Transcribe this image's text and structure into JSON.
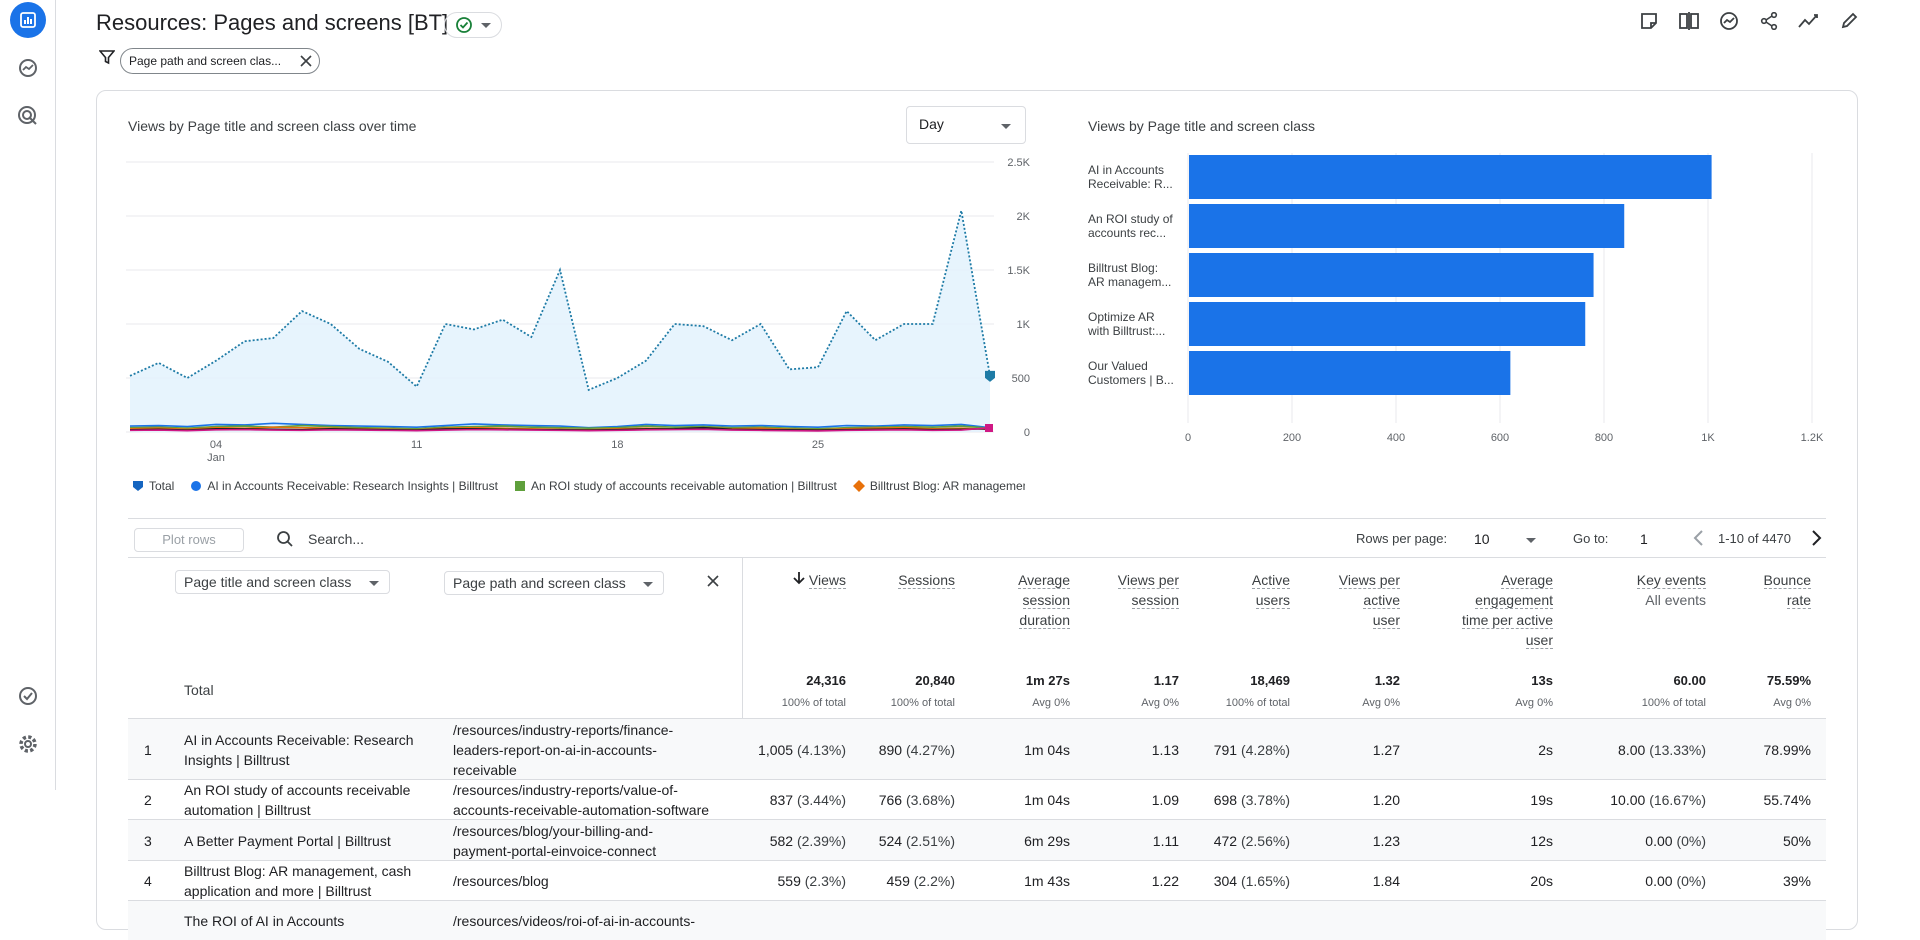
{
  "header": {
    "title": "Resources: Pages and screens [BT]",
    "filter_chip": "Page path and screen clas..."
  },
  "line_chart": {
    "title": "Views by Page title and screen class over time",
    "interval": "Day",
    "legend": [
      {
        "name": "Total",
        "color": "#1565c0"
      },
      {
        "name": "AI in Accounts Receivable: Research Insights | Billtrust",
        "color": "#1a73e8"
      },
      {
        "name": "An ROI study of accounts receivable automation | Billtrust",
        "color": "#5fa03c"
      },
      {
        "name": "Billtrust Blog: AR management, cash application and more | Billtrust",
        "color": "#e8710a"
      }
    ],
    "x_ticks": [
      {
        "day": "04",
        "month": "Jan",
        "day_num": 4
      },
      {
        "day": "11",
        "month": "",
        "day_num": 11
      },
      {
        "day": "18",
        "month": "",
        "day_num": 18
      },
      {
        "day": "25",
        "month": "",
        "day_num": 25
      }
    ],
    "y_ticks": [
      "0",
      "500",
      "1K",
      "1.5K",
      "2K",
      "2.5K"
    ]
  },
  "bar_chart": {
    "title": "Views by Page title and screen class",
    "x_ticks": [
      "0",
      "200",
      "400",
      "600",
      "800",
      "1K",
      "1.2K"
    ]
  },
  "chart_data": [
    {
      "type": "line",
      "title": "Views by Page title and screen class over time",
      "xlabel": "",
      "ylabel": "",
      "ylim": [
        0,
        2500
      ],
      "x": [
        1,
        2,
        3,
        4,
        5,
        6,
        7,
        8,
        9,
        10,
        11,
        12,
        13,
        14,
        15,
        16,
        17,
        18,
        19,
        20,
        21,
        22,
        23,
        24,
        25,
        26,
        27,
        28,
        29,
        30,
        31
      ],
      "series": [
        {
          "name": "Total",
          "values": [
            520,
            640,
            500,
            660,
            840,
            870,
            1120,
            1000,
            770,
            650,
            420,
            1000,
            950,
            1040,
            880,
            1500,
            390,
            500,
            660,
            1000,
            980,
            850,
            1000,
            580,
            600,
            1120,
            850,
            1000,
            1000,
            2050,
            520
          ]
        },
        {
          "name": "AI in Accounts Receivable: Research Insights | Billtrust",
          "values": [
            55,
            60,
            50,
            70,
            65,
            80,
            70,
            60,
            55,
            50,
            45,
            60,
            75,
            65,
            60,
            55,
            40,
            50,
            70,
            60,
            65,
            55,
            60,
            50,
            45,
            60,
            55,
            65,
            60,
            70,
            40
          ]
        },
        {
          "name": "An ROI study of accounts receivable automation | Billtrust",
          "values": [
            40,
            45,
            35,
            50,
            55,
            45,
            60,
            50,
            40,
            35,
            30,
            45,
            50,
            55,
            45,
            40,
            35,
            40,
            55,
            45,
            50,
            40,
            45,
            35,
            30,
            40,
            45,
            50,
            45,
            55,
            35
          ]
        },
        {
          "name": "Billtrust Blog: AR management, cash application and more | Billtrust",
          "values": [
            30,
            35,
            25,
            40,
            35,
            45,
            40,
            35,
            30,
            25,
            20,
            35,
            40,
            35,
            30,
            25,
            20,
            30,
            35,
            30,
            40,
            30,
            35,
            25,
            20,
            30,
            35,
            40,
            30,
            35,
            25
          ]
        }
      ]
    },
    {
      "type": "bar",
      "title": "Views by Page title and screen class",
      "xlim": [
        0,
        1200
      ],
      "categories": [
        [
          "AI in Accounts",
          "Receivable: R..."
        ],
        [
          "An ROI study of",
          "accounts rec..."
        ],
        [
          "Billtrust Blog:",
          "AR managem..."
        ],
        [
          "Optimize AR",
          "with Billtrust:..."
        ],
        [
          "Our Valued",
          "Customers | B..."
        ]
      ],
      "values": [
        1005,
        837,
        778,
        762,
        618
      ]
    }
  ],
  "table": {
    "plot_rows": "Plot rows",
    "search_placeholder": "Search...",
    "rows_per_page_label": "Rows per page:",
    "rows_per_page": "10",
    "goto_label": "Go to:",
    "goto_value": "1",
    "range": "1-10 of 4470",
    "dim1": "Page title and screen class",
    "dim2": "Page path and screen class",
    "metrics": [
      {
        "lines": [
          "Views"
        ],
        "total": "24,316",
        "sub": "100% of total"
      },
      {
        "lines": [
          "Sessions"
        ],
        "total": "20,840",
        "sub": "100% of total"
      },
      {
        "lines": [
          "Average",
          "session",
          "duration"
        ],
        "total": "1m 27s",
        "sub": "Avg 0%"
      },
      {
        "lines": [
          "Views per",
          "session"
        ],
        "total": "1.17",
        "sub": "Avg 0%"
      },
      {
        "lines": [
          "Active",
          "users"
        ],
        "total": "18,469",
        "sub": "100% of total"
      },
      {
        "lines": [
          "Views per",
          "active",
          "user"
        ],
        "total": "1.32",
        "sub": "Avg 0%"
      },
      {
        "lines": [
          "Average",
          "engagement",
          "time per active",
          "user"
        ],
        "total": "13s",
        "sub": "Avg 0%"
      },
      {
        "lines": [
          "Key events"
        ],
        "sub_header": "All events",
        "total": "60.00",
        "sub": "100% of total"
      },
      {
        "lines": [
          "Bounce",
          "rate"
        ],
        "total": "75.59%",
        "sub": "Avg 0%"
      }
    ],
    "total_label": "Total",
    "rows": [
      {
        "idx": "1",
        "title": [
          "AI in Accounts Receivable: Research",
          "Insights | Billtrust"
        ],
        "path": [
          "/resources/industry-reports/finance-",
          "leaders-report-on-ai-in-accounts-",
          "receivable"
        ],
        "views": "1,005",
        "views_pct": "(4.13%)",
        "sessions": "890",
        "sessions_pct": "(4.27%)",
        "avg_session": "1m 04s",
        "vps": "1.13",
        "users": "791",
        "users_pct": "(4.28%)",
        "vpau": "1.27",
        "eng": "2s",
        "key": "8.00",
        "key_pct": "(13.33%)",
        "bounce": "78.99%"
      },
      {
        "idx": "2",
        "title": [
          "An ROI study of accounts receivable",
          "automation | Billtrust"
        ],
        "path": [
          "/resources/industry-reports/value-of-",
          "accounts-receivable-automation-software"
        ],
        "views": "837",
        "views_pct": "(3.44%)",
        "sessions": "766",
        "sessions_pct": "(3.68%)",
        "avg_session": "1m 04s",
        "vps": "1.09",
        "users": "698",
        "users_pct": "(3.78%)",
        "vpau": "1.20",
        "eng": "19s",
        "key": "10.00",
        "key_pct": "(16.67%)",
        "bounce": "55.74%"
      },
      {
        "idx": "3",
        "title": [
          "A Better Payment Portal | Billtrust"
        ],
        "path": [
          "/resources/blog/your-billing-and-",
          "payment-portal-einvoice-connect"
        ],
        "views": "582",
        "views_pct": "(2.39%)",
        "sessions": "524",
        "sessions_pct": "(2.51%)",
        "avg_session": "6m 29s",
        "vps": "1.11",
        "users": "472",
        "users_pct": "(2.56%)",
        "vpau": "1.23",
        "eng": "12s",
        "key": "0.00",
        "key_pct": "(0%)",
        "bounce": "50%"
      },
      {
        "idx": "4",
        "title": [
          "Billtrust Blog: AR management, cash",
          "application and more | Billtrust"
        ],
        "path": [
          "/resources/blog"
        ],
        "views": "559",
        "views_pct": "(2.3%)",
        "sessions": "459",
        "sessions_pct": "(2.2%)",
        "avg_session": "1m 43s",
        "vps": "1.22",
        "users": "304",
        "users_pct": "(1.65%)",
        "vpau": "1.84",
        "eng": "20s",
        "key": "0.00",
        "key_pct": "(0%)",
        "bounce": "39%"
      },
      {
        "idx": "",
        "title": [
          "The ROI of AI in Accounts"
        ],
        "path": [
          "/resources/videos/roi-of-ai-in-accounts-"
        ],
        "views": "",
        "views_pct": "",
        "sessions": "",
        "sessions_pct": "",
        "avg_session": "",
        "vps": "",
        "users": "",
        "users_pct": "",
        "vpau": "",
        "eng": "",
        "key": "",
        "key_pct": "",
        "bounce": ""
      }
    ]
  }
}
